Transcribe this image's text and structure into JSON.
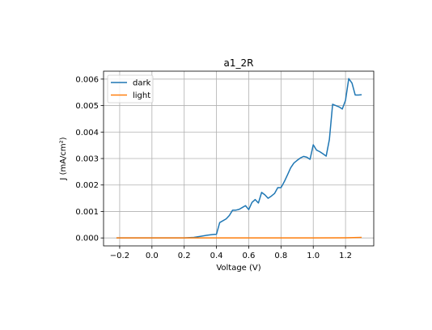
{
  "chart_data": {
    "type": "line",
    "title": "a1_2R",
    "xlabel": "Voltage (V)",
    "ylabel": "J (mA/cm²)",
    "xlim": [
      -0.3,
      1.375
    ],
    "ylim": [
      -0.0003,
      0.0063
    ],
    "xticks": [
      -0.2,
      0.0,
      0.2,
      0.4,
      0.6,
      0.8,
      1.0,
      1.2
    ],
    "xtick_labels": [
      "−0.2",
      "0.0",
      "0.2",
      "0.4",
      "0.6",
      "0.8",
      "1.0",
      "1.2"
    ],
    "yticks": [
      0.0,
      0.001,
      0.002,
      0.003,
      0.004,
      0.005,
      0.006
    ],
    "ytick_labels": [
      "0.000",
      "0.001",
      "0.002",
      "0.003",
      "0.004",
      "0.005",
      "0.006"
    ],
    "grid": true,
    "legend_position": "upper-left",
    "series": [
      {
        "name": "dark",
        "color": "#1f77b4",
        "x": [
          -0.22,
          0.0,
          0.2,
          0.26,
          0.3,
          0.34,
          0.38,
          0.4,
          0.42,
          0.46,
          0.48,
          0.5,
          0.52,
          0.54,
          0.56,
          0.58,
          0.6,
          0.62,
          0.64,
          0.66,
          0.68,
          0.7,
          0.72,
          0.74,
          0.76,
          0.78,
          0.8,
          0.82,
          0.84,
          0.86,
          0.88,
          0.9,
          0.92,
          0.94,
          0.96,
          0.98,
          1.0,
          1.02,
          1.04,
          1.06,
          1.08,
          1.1,
          1.12,
          1.14,
          1.16,
          1.18,
          1.2,
          1.22,
          1.24,
          1.26,
          1.28,
          1.3
        ],
        "y": [
          0.0,
          0.0,
          0.0,
          2e-05,
          6e-05,
          0.0001,
          0.00013,
          0.00014,
          0.00058,
          0.00072,
          0.00085,
          0.00105,
          0.00105,
          0.00108,
          0.00115,
          0.00122,
          0.00107,
          0.00134,
          0.00145,
          0.00132,
          0.00172,
          0.00163,
          0.0015,
          0.00158,
          0.00168,
          0.0019,
          0.0019,
          0.00212,
          0.00238,
          0.00265,
          0.00283,
          0.00293,
          0.00302,
          0.00308,
          0.00305,
          0.00297,
          0.00352,
          0.00332,
          0.00326,
          0.00318,
          0.00309,
          0.00372,
          0.00505,
          0.005,
          0.00495,
          0.00487,
          0.0052,
          0.00602,
          0.00585,
          0.0054,
          0.0054,
          0.00541
        ]
      },
      {
        "name": "light",
        "color": "#ff7f0e",
        "x": [
          -0.22,
          0.0,
          0.2,
          0.4,
          0.6,
          0.8,
          1.0,
          1.2,
          1.3
        ],
        "y": [
          0.0,
          0.0,
          0.0,
          0.0,
          0.0,
          0.0,
          0.0,
          5e-06,
          2e-05
        ]
      }
    ]
  }
}
